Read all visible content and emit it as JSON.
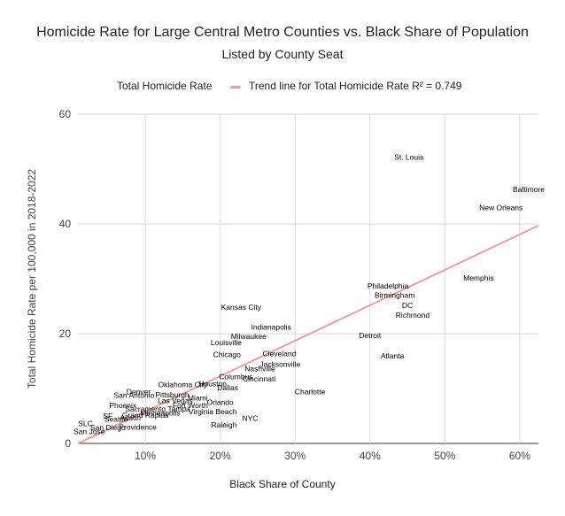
{
  "chart_data": {
    "type": "scatter",
    "title": "Homicide Rate for Large Central Metro Counties vs. Black Share of Population",
    "subtitle": "Listed by County Seat",
    "xlabel": "Black Share of County",
    "ylabel": "Total Homicide Rate per 100,000 in 2018-2022",
    "legend": [
      "Total Homicide Rate",
      "Trend line for Total Homicide Rate R² = 0.749"
    ],
    "legend_position": "top",
    "grid": true,
    "xlim": [
      0.01,
      0.625
    ],
    "ylim": [
      0,
      60
    ],
    "x_ticks": [
      "10%",
      "20%",
      "30%",
      "40%",
      "50%",
      "60%"
    ],
    "x_tick_values": [
      0.1,
      0.2,
      0.3,
      0.4,
      0.5,
      0.6
    ],
    "y_ticks": [
      "0",
      "20",
      "40",
      "60"
    ],
    "y_tick_values": [
      0,
      20,
      40,
      60
    ],
    "trend_line": {
      "r_squared": 0.749,
      "start": [
        0.01,
        0
      ],
      "end": [
        0.625,
        39.7
      ],
      "color": "#f29c9c"
    },
    "points": [
      {
        "label": "St. Louis",
        "x": 0.452,
        "y": 52.2
      },
      {
        "label": "Baltimore",
        "x": 0.612,
        "y": 46.3
      },
      {
        "label": "New Orleans",
        "x": 0.575,
        "y": 43.0
      },
      {
        "label": "Memphis",
        "x": 0.545,
        "y": 30.2
      },
      {
        "label": "Philadelphia",
        "x": 0.424,
        "y": 28.7
      },
      {
        "label": "Birmingham",
        "x": 0.433,
        "y": 27.0
      },
      {
        "label": "DC",
        "x": 0.45,
        "y": 25.2
      },
      {
        "label": "Richmond",
        "x": 0.457,
        "y": 23.4
      },
      {
        "label": "Kansas City",
        "x": 0.228,
        "y": 24.8
      },
      {
        "label": "Indianapolis",
        "x": 0.268,
        "y": 21.2
      },
      {
        "label": "Detroit",
        "x": 0.4,
        "y": 19.7
      },
      {
        "label": "Milwaukee",
        "x": 0.238,
        "y": 19.5
      },
      {
        "label": "Louisville",
        "x": 0.208,
        "y": 18.4
      },
      {
        "label": "Atlanta",
        "x": 0.43,
        "y": 16.0
      },
      {
        "label": "Chicago",
        "x": 0.209,
        "y": 16.2
      },
      {
        "label": "Cleveland",
        "x": 0.279,
        "y": 16.4
      },
      {
        "label": "Jacksonville",
        "x": 0.28,
        "y": 14.4
      },
      {
        "label": "Nashville",
        "x": 0.253,
        "y": 13.6
      },
      {
        "label": "Columbus",
        "x": 0.221,
        "y": 12.2
      },
      {
        "label": "Cincinnati",
        "x": 0.252,
        "y": 11.8
      },
      {
        "label": "Houston",
        "x": 0.19,
        "y": 10.9
      },
      {
        "label": "Oklahoma City",
        "x": 0.15,
        "y": 10.7
      },
      {
        "label": "Dallas",
        "x": 0.21,
        "y": 10.2
      },
      {
        "label": "Charlotte",
        "x": 0.32,
        "y": 9.4
      },
      {
        "label": "Denver",
        "x": 0.091,
        "y": 9.4
      },
      {
        "label": "Pittsburgh",
        "x": 0.136,
        "y": 8.9
      },
      {
        "label": "San Antonio",
        "x": 0.085,
        "y": 8.8
      },
      {
        "label": "Miami",
        "x": 0.17,
        "y": 8.3
      },
      {
        "label": "Las Vegas",
        "x": 0.14,
        "y": 7.8
      },
      {
        "label": "Orlando",
        "x": 0.2,
        "y": 7.5
      },
      {
        "label": "Fort Worth",
        "x": 0.16,
        "y": 6.9
      },
      {
        "label": "Phoenix",
        "x": 0.07,
        "y": 6.9
      },
      {
        "label": "Sacramento",
        "x": 0.1,
        "y": 6.3
      },
      {
        "label": "Tampa",
        "x": 0.145,
        "y": 6.3
      },
      {
        "label": "Virginia Beach",
        "x": 0.19,
        "y": 5.8
      },
      {
        "label": "Minneapolis",
        "x": 0.12,
        "y": 5.6
      },
      {
        "label": "Grand Rapids",
        "x": 0.1,
        "y": 5.2
      },
      {
        "label": "NYC",
        "x": 0.24,
        "y": 4.6
      },
      {
        "label": "SF",
        "x": 0.05,
        "y": 5.0
      },
      {
        "label": "Austin",
        "x": 0.08,
        "y": 4.7
      },
      {
        "label": "Seattle",
        "x": 0.061,
        "y": 4.4
      },
      {
        "label": "Raleigh",
        "x": 0.205,
        "y": 3.4
      },
      {
        "label": "SLC",
        "x": 0.02,
        "y": 3.6
      },
      {
        "label": "San Diego",
        "x": 0.05,
        "y": 2.9
      },
      {
        "label": "Providence",
        "x": 0.09,
        "y": 3.0
      },
      {
        "label": "San Jose",
        "x": 0.025,
        "y": 2.2
      }
    ]
  }
}
